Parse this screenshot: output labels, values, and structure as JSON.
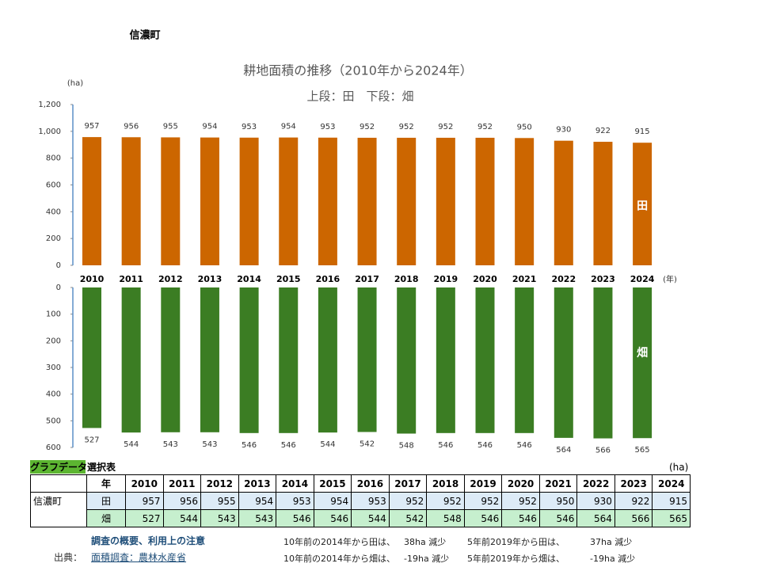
{
  "header": {
    "title": "信濃町"
  },
  "chart_data": [
    {
      "type": "bar",
      "title": "耕地面積の推移（2010年から2024年）",
      "subtitle": "上段：田　下段：畑",
      "y_label": "(ha)",
      "x_label": "(年)",
      "categories": [
        "2010",
        "2011",
        "2012",
        "2013",
        "2014",
        "2015",
        "2016",
        "2017",
        "2018",
        "2019",
        "2020",
        "2021",
        "2022",
        "2023",
        "2024"
      ],
      "series": [
        {
          "name": "田",
          "color": "#cc6600",
          "values": [
            957,
            956,
            955,
            954,
            953,
            954,
            953,
            952,
            952,
            952,
            952,
            950,
            930,
            922,
            915
          ]
        }
      ],
      "ylim": [
        0,
        1200
      ],
      "yticks": [
        0,
        200,
        400,
        600,
        800,
        {
          "value": 1000,
          "label": "1,000"
        },
        {
          "value": 1200,
          "label": "1,200"
        }
      ],
      "y_reversed": false
    },
    {
      "type": "bar",
      "series": [
        {
          "name": "畑",
          "color": "#3b7d23",
          "values": [
            527,
            544,
            543,
            543,
            546,
            546,
            544,
            542,
            548,
            546,
            546,
            546,
            564,
            566,
            565
          ]
        }
      ],
      "ylim": [
        0,
        600
      ],
      "yticks": [
        0,
        100,
        200,
        300,
        400,
        500,
        600
      ],
      "y_reversed": true
    }
  ],
  "table": {
    "title": "グラフデータ選択表",
    "unit": "(ha)",
    "corner": "年",
    "region": "信濃町",
    "columns": [
      "2010",
      "2011",
      "2012",
      "2013",
      "2014",
      "2015",
      "2016",
      "2017",
      "2018",
      "2019",
      "2020",
      "2021",
      "2022",
      "2023",
      "2024"
    ],
    "rows": [
      {
        "label": "田",
        "values": [
          957,
          956,
          955,
          954,
          953,
          954,
          953,
          952,
          952,
          952,
          952,
          950,
          930,
          922,
          915
        ]
      },
      {
        "label": "畑",
        "values": [
          527,
          544,
          543,
          543,
          546,
          546,
          544,
          542,
          548,
          546,
          546,
          546,
          564,
          566,
          565
        ]
      }
    ]
  },
  "footer": {
    "survey_link": "調査の概要、利用上の注意",
    "source_label": "出典：",
    "source_link": "面積調査：農林水産省",
    "notes": [
      [
        "10年前の2014年から田は、",
        "38ha 減少",
        "5年前2019年から田は、",
        "37ha 減少"
      ],
      [
        "10年前の2014年から畑は、",
        "-19ha 減少",
        "5年前2019年から畑は、",
        "-19ha 減少"
      ]
    ]
  }
}
